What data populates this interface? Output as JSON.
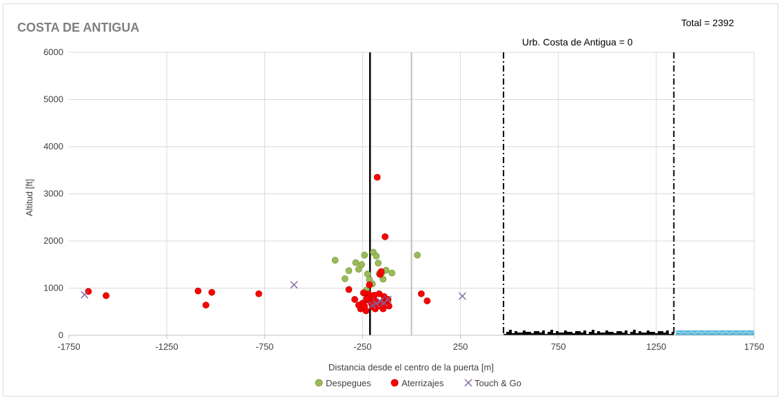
{
  "chart_data": {
    "type": "scatter",
    "title": "COSTA DE ANTIGUA",
    "total_label": "Total = 2392",
    "area_label": "Urb. Costa de Antigua =  0",
    "xlabel": "Distancia desde el centro de la puerta [m]",
    "ylabel": "Altitud [ft]",
    "xlim": [
      -1750,
      1750
    ],
    "ylim": [
      0,
      6000
    ],
    "xticks": [
      -1750,
      -1250,
      -750,
      -250,
      250,
      750,
      1250,
      1750
    ],
    "yticks": [
      0,
      1000,
      2000,
      3000,
      4000,
      5000,
      6000
    ],
    "grid": true,
    "legend_position": "bottom",
    "vertical_lines": {
      "center_solid_x": -212,
      "gray_line_x": 0,
      "dashdot_x": [
        470,
        1340
      ]
    },
    "terrain": {
      "land_x": [
        470,
        1340
      ],
      "water_x": [
        1350,
        1750
      ],
      "land_color": "#000000",
      "water_color": "#4fb3d9"
    },
    "series": [
      {
        "name": "Despegues",
        "color": "#9bbb59",
        "edge": "#7a9a3c",
        "marker": "circle",
        "points": [
          [
            -390,
            1590
          ],
          [
            -340,
            1200
          ],
          [
            -320,
            1370
          ],
          [
            -285,
            1540
          ],
          [
            -270,
            1400
          ],
          [
            -255,
            1500
          ],
          [
            -240,
            1700
          ],
          [
            -225,
            1300
          ],
          [
            -215,
            1180
          ],
          [
            -200,
            1090
          ],
          [
            -195,
            1760
          ],
          [
            -180,
            1680
          ],
          [
            -170,
            1530
          ],
          [
            -165,
            1310
          ],
          [
            -150,
            1330
          ],
          [
            -145,
            1190
          ],
          [
            -130,
            1380
          ],
          [
            -100,
            1320
          ],
          [
            30,
            1700
          ],
          [
            -230,
            960
          ]
        ]
      },
      {
        "name": "Aterrizajes",
        "color": "#ff0000",
        "edge": "#c00000",
        "marker": "circle",
        "points": [
          [
            -1650,
            930
          ],
          [
            -1560,
            840
          ],
          [
            -1090,
            940
          ],
          [
            -1050,
            640
          ],
          [
            -1020,
            910
          ],
          [
            -780,
            880
          ],
          [
            -320,
            970
          ],
          [
            -290,
            760
          ],
          [
            -260,
            560
          ],
          [
            -250,
            680
          ],
          [
            -240,
            620
          ],
          [
            -232,
            520
          ],
          [
            -225,
            750
          ],
          [
            -220,
            880
          ],
          [
            -215,
            1070
          ],
          [
            -210,
            820
          ],
          [
            -205,
            680
          ],
          [
            -200,
            600
          ],
          [
            -195,
            700
          ],
          [
            -190,
            850
          ],
          [
            -185,
            560
          ],
          [
            -180,
            720
          ],
          [
            -175,
            3350
          ],
          [
            -170,
            620
          ],
          [
            -165,
            880
          ],
          [
            -160,
            1290
          ],
          [
            -155,
            1350
          ],
          [
            -150,
            700
          ],
          [
            -145,
            560
          ],
          [
            -140,
            820
          ],
          [
            -135,
            2090
          ],
          [
            -130,
            650
          ],
          [
            -125,
            740
          ],
          [
            -120,
            760
          ],
          [
            -115,
            620
          ],
          [
            -230,
            780
          ],
          [
            -245,
            900
          ],
          [
            -270,
            640
          ],
          [
            50,
            880
          ],
          [
            80,
            730
          ]
        ]
      },
      {
        "name": "Touch & Go",
        "color": "#8064a2",
        "edge": "#8064a2",
        "marker": "x",
        "points": [
          [
            -1670,
            860
          ],
          [
            -600,
            1070
          ],
          [
            -200,
            640
          ],
          [
            -180,
            670
          ],
          [
            -160,
            720
          ],
          [
            -140,
            690
          ],
          [
            -120,
            760
          ],
          [
            260,
            830
          ]
        ]
      }
    ]
  }
}
